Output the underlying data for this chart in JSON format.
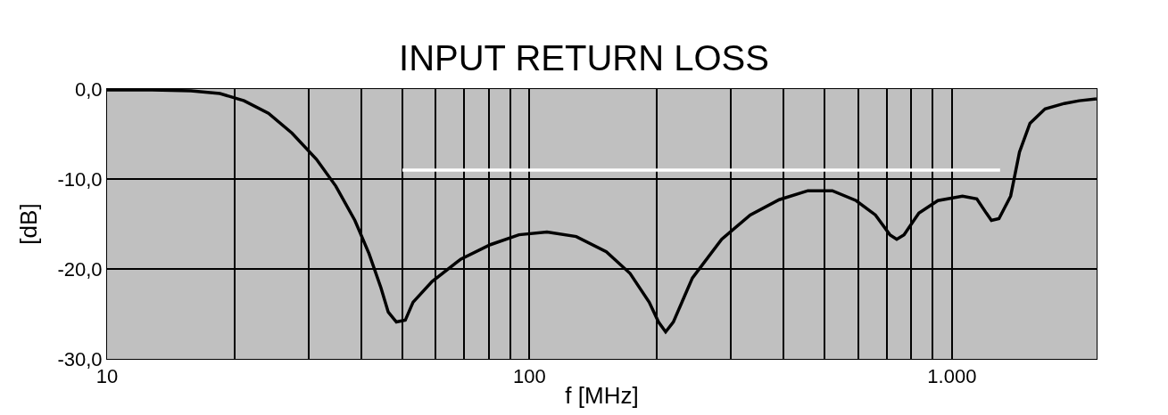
{
  "chart_data": {
    "type": "line",
    "title": "INPUT RETURN LOSS",
    "xlabel": "f [MHz]",
    "ylabel": "[dB]",
    "log": "x",
    "grid": true,
    "line_style": "solid",
    "marker": "none",
    "xlim": [
      10,
      2200
    ],
    "ylim": [
      -30,
      0
    ],
    "xticks": [
      10,
      {
        "value": 20,
        "label": null
      },
      {
        "value": 30,
        "label": null
      },
      {
        "value": 40,
        "label": null
      },
      {
        "value": 50,
        "label": null
      },
      {
        "value": 60,
        "label": null
      },
      {
        "value": 70,
        "label": null
      },
      {
        "value": 80,
        "label": null
      },
      {
        "value": 90,
        "label": null
      },
      100,
      {
        "value": 200,
        "label": null
      },
      {
        "value": 300,
        "label": null
      },
      {
        "value": 400,
        "label": null
      },
      {
        "value": 500,
        "label": null
      },
      {
        "value": 600,
        "label": null
      },
      {
        "value": 700,
        "label": null
      },
      {
        "value": 800,
        "label": null
      },
      {
        "value": 900,
        "label": null
      },
      {
        "value": 1000,
        "label": "1.000"
      }
    ],
    "yticks": [
      {
        "value": 0,
        "label": "0,0"
      },
      {
        "value": -10,
        "label": "-10,0"
      },
      {
        "value": -20,
        "label": "-20,0"
      },
      {
        "value": -30,
        "label": "-30,0"
      }
    ],
    "series": [
      {
        "color": "#000000",
        "x": [
          10,
          12.8,
          15.8,
          18.5,
          21.1,
          24.1,
          27.4,
          31.3,
          34.8,
          38.6,
          41.7,
          44.5,
          46.3,
          48.4,
          50.8,
          53,
          58.8,
          68.8,
          80.8,
          94.4,
          110,
          129,
          152,
          173,
          192,
          202,
          210,
          219,
          243,
          285,
          333,
          390,
          456,
          521,
          593,
          659,
          713,
          740,
          770,
          835,
          926,
          1059,
          1145,
          1206,
          1240,
          1292,
          1377,
          1445,
          1530,
          1661,
          1845,
          2000,
          2198
        ],
        "values": [
          -0.1,
          -0.1,
          -0.2,
          -0.5,
          -1.3,
          -2.7,
          -4.9,
          -7.8,
          -10.8,
          -14.6,
          -18.3,
          -22.1,
          -24.8,
          -25.9,
          -25.7,
          -23.7,
          -21.4,
          -18.9,
          -17.3,
          -16.2,
          -15.9,
          -16.4,
          -18.1,
          -20.5,
          -23.7,
          -25.9,
          -27.0,
          -25.9,
          -21.0,
          -16.7,
          -14.0,
          -12.3,
          -11.3,
          -11.3,
          -12.4,
          -14.0,
          -16.2,
          -16.7,
          -16.2,
          -13.8,
          -12.4,
          -11.9,
          -12.2,
          -13.8,
          -14.6,
          -14.4,
          -11.9,
          -7.0,
          -3.8,
          -2.2,
          -1.6,
          -1.3,
          -1.1
        ]
      },
      {
        "color": "#ffffff",
        "x": [
          50,
          1300
        ],
        "values": [
          -9,
          -9
        ]
      }
    ]
  }
}
